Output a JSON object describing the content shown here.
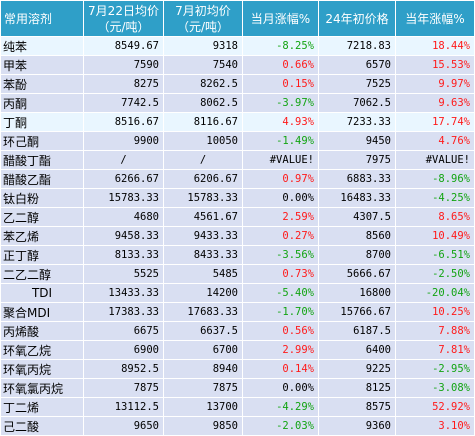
{
  "headers": {
    "name": "常用溶剂",
    "avg_line1": "7月22日均价",
    "avg_line2": "（元/吨）",
    "early_line1": "7月初均价",
    "early_line2": "（元/吨）",
    "month_change": "当月涨幅%",
    "year_start": "24年初价格",
    "year_change": "当年涨幅%"
  },
  "rows": [
    {
      "name": "纯苯",
      "avg": "8549.67",
      "early": "9318",
      "month": "-8.25%",
      "month_dir": "neg",
      "ystart": "7218.83",
      "year": "18.44%",
      "year_dir": "pos",
      "highlight": true
    },
    {
      "name": "甲苯",
      "avg": "7590",
      "early": "7540",
      "month": "0.66%",
      "month_dir": "pos",
      "ystart": "6570",
      "year": "15.53%",
      "year_dir": "pos",
      "highlight": false
    },
    {
      "name": "苯酚",
      "avg": "8275",
      "early": "8262.5",
      "month": "0.15%",
      "month_dir": "pos",
      "ystart": "7525",
      "year": "9.97%",
      "year_dir": "pos",
      "highlight": false
    },
    {
      "name": "丙酮",
      "avg": "7742.5",
      "early": "8062.5",
      "month": "-3.97%",
      "month_dir": "neg",
      "ystart": "7062.5",
      "year": "9.63%",
      "year_dir": "pos",
      "highlight": false
    },
    {
      "name": "丁酮",
      "avg": "8516.67",
      "early": "8116.67",
      "month": "4.93%",
      "month_dir": "pos",
      "ystart": "7233.33",
      "year": "17.74%",
      "year_dir": "pos",
      "highlight": true
    },
    {
      "name": "环己酮",
      "avg": "9900",
      "early": "10050",
      "month": "-1.49%",
      "month_dir": "neg",
      "ystart": "9450",
      "year": "4.76%",
      "year_dir": "pos",
      "highlight": false
    },
    {
      "name": "醋酸丁酯",
      "avg": "/",
      "early": "/",
      "month": "#VALUE!",
      "month_dir": "neu",
      "ystart": "7975",
      "year": "#VALUE!",
      "year_dir": "neu",
      "highlight": false,
      "center": true
    },
    {
      "name": "醋酸乙酯",
      "avg": "6266.67",
      "early": "6206.67",
      "month": "0.97%",
      "month_dir": "pos",
      "ystart": "6883.33",
      "year": "-8.96%",
      "year_dir": "neg",
      "highlight": false
    },
    {
      "name": "钛白粉",
      "avg": "15783.33",
      "early": "15783.33",
      "month": "0.00%",
      "month_dir": "neu",
      "ystart": "16483.33",
      "year": "-4.25%",
      "year_dir": "neg",
      "highlight": false
    },
    {
      "name": "乙二醇",
      "avg": "4680",
      "early": "4561.67",
      "month": "2.59%",
      "month_dir": "pos",
      "ystart": "4307.5",
      "year": "8.65%",
      "year_dir": "pos",
      "highlight": false
    },
    {
      "name": "苯乙烯",
      "avg": "9458.33",
      "early": "9433.33",
      "month": "0.27%",
      "month_dir": "pos",
      "ystart": "8560",
      "year": "10.49%",
      "year_dir": "pos",
      "highlight": false
    },
    {
      "name": "正丁醇",
      "avg": "8133.33",
      "early": "8433.33",
      "month": "-3.56%",
      "month_dir": "neg",
      "ystart": "8700",
      "year": "-6.51%",
      "year_dir": "neg",
      "highlight": false
    },
    {
      "name": "二乙二醇",
      "avg": "5525",
      "early": "5485",
      "month": "0.73%",
      "month_dir": "pos",
      "ystart": "5666.67",
      "year": "-2.50%",
      "year_dir": "neg",
      "highlight": false
    },
    {
      "name": "TDI",
      "avg": "13433.33",
      "early": "14200",
      "month": "-5.40%",
      "month_dir": "neg",
      "ystart": "16800",
      "year": "-20.04%",
      "year_dir": "neg",
      "highlight": false,
      "name_center": true
    },
    {
      "name": "聚合MDI",
      "avg": "17383.33",
      "early": "17683.33",
      "month": "-1.70%",
      "month_dir": "neg",
      "ystart": "15766.67",
      "year": "10.25%",
      "year_dir": "pos",
      "highlight": false
    },
    {
      "name": "丙烯酸",
      "avg": "6675",
      "early": "6637.5",
      "month": "0.56%",
      "month_dir": "pos",
      "ystart": "6187.5",
      "year": "7.88%",
      "year_dir": "pos",
      "highlight": false
    },
    {
      "name": "环氧乙烷",
      "avg": "6900",
      "early": "6700",
      "month": "2.99%",
      "month_dir": "pos",
      "ystart": "6400",
      "year": "7.81%",
      "year_dir": "pos",
      "highlight": false
    },
    {
      "name": "环氧丙烷",
      "avg": "8952.5",
      "early": "8940",
      "month": "0.14%",
      "month_dir": "pos",
      "ystart": "9225",
      "year": "-2.95%",
      "year_dir": "neg",
      "highlight": false
    },
    {
      "name": "环氧氯丙烷",
      "avg": "7875",
      "early": "7875",
      "month": "0.00%",
      "month_dir": "neu",
      "ystart": "8125",
      "year": "-3.08%",
      "year_dir": "neg",
      "highlight": false
    },
    {
      "name": "丁二烯",
      "avg": "13112.5",
      "early": "13700",
      "month": "-4.29%",
      "month_dir": "neg",
      "ystart": "8575",
      "year": "52.92%",
      "year_dir": "pos",
      "highlight": false
    },
    {
      "name": "己二酸",
      "avg": "9650",
      "early": "9850",
      "month": "-2.03%",
      "month_dir": "neg",
      "ystart": "9360",
      "year": "3.10%",
      "year_dir": "pos",
      "highlight": false
    }
  ],
  "colors": {
    "header_bg": "#2f9fc8",
    "row_bg": "#d9dff2",
    "highlight_bg": "#e9f6ff",
    "positive": "#ff1a1a",
    "negative": "#12a412"
  }
}
